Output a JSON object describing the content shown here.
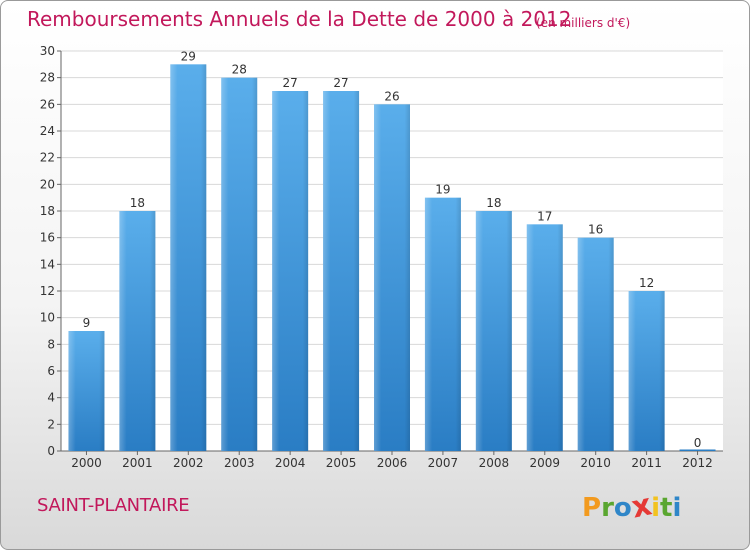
{
  "chart_data": {
    "type": "bar",
    "title": "Remboursements Annuels de la Dette de 2000 à 2012",
    "subtitle": "(en milliers d'€)",
    "categories": [
      "2000",
      "2001",
      "2002",
      "2003",
      "2004",
      "2005",
      "2006",
      "2007",
      "2008",
      "2009",
      "2010",
      "2011",
      "2012"
    ],
    "values": [
      9,
      18,
      29,
      28,
      27,
      27,
      26,
      19,
      18,
      17,
      16,
      12,
      0
    ],
    "ylim": [
      0,
      30
    ],
    "yticks": [
      0,
      2,
      4,
      6,
      8,
      10,
      12,
      14,
      16,
      18,
      20,
      22,
      24,
      26,
      28,
      30
    ],
    "grid": true,
    "bar_color": "#4a9de0"
  },
  "footer": {
    "place": "SAINT-PLANTAIRE",
    "logo_letters": [
      "P",
      "r",
      "o",
      "x",
      "i",
      "t",
      "i"
    ],
    "logo_colors": [
      "#f29a1f",
      "#5aa630",
      "#2f86c8",
      "#e53935",
      "#f2c21f",
      "#5aa630",
      "#2f86c8"
    ]
  }
}
